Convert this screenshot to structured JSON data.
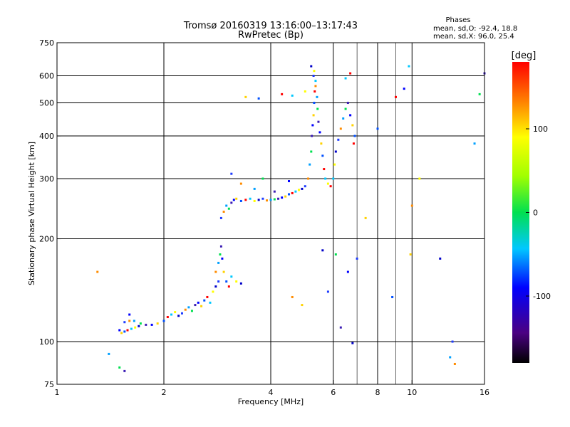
{
  "chart_data": {
    "type": "scatter",
    "title": "Tromsø 20160319 13:16:00–13:17:43",
    "subtitle": "RwPretec (Bp)",
    "xlabel": "Frequency [MHz]",
    "ylabel": "Stationary phase Virtual Height [km]",
    "x_scale": "log",
    "y_scale": "log",
    "xlim": [
      1,
      16
    ],
    "ylim": [
      75,
      750
    ],
    "x_ticks": [
      1,
      2,
      4,
      6,
      8,
      10,
      16
    ],
    "x_tick_labels": [
      "1",
      "2",
      "4",
      "6",
      "8",
      "10",
      "16"
    ],
    "x_grid": [
      2,
      4,
      6,
      8,
      10
    ],
    "x_minor": [
      7,
      9
    ],
    "y_ticks": [
      75,
      100,
      200,
      300,
      400,
      500,
      600,
      750
    ],
    "y_tick_labels": [
      "75",
      "100",
      "200",
      "300",
      "400",
      "500",
      "600",
      "750"
    ],
    "y_grid": [
      100,
      200,
      300,
      400,
      500,
      600
    ],
    "grid": true,
    "phases": {
      "heading": "Phases",
      "line_o": "mean, sd,O: -92.4, 18.8",
      "line_x": "mean, sd,X: 96.0, 25.4"
    },
    "colorbar": {
      "label": "[deg]",
      "range": [
        -180,
        180
      ],
      "ticks": [
        100,
        0,
        -100
      ],
      "tick_labels": [
        "100",
        "0",
        "-100"
      ]
    },
    "series": [
      {
        "points": [
          [
            1.5,
            108
          ],
          [
            1.52,
            106
          ],
          [
            1.55,
            107
          ],
          [
            1.58,
            108
          ],
          [
            1.62,
            109
          ],
          [
            1.66,
            110
          ],
          [
            1.7,
            111
          ],
          [
            1.55,
            114
          ],
          [
            1.6,
            115
          ],
          [
            1.65,
            115
          ],
          [
            1.72,
            113
          ],
          [
            1.78,
            112
          ],
          [
            1.85,
            112
          ],
          [
            1.92,
            113
          ],
          [
            2.0,
            115
          ],
          [
            2.05,
            118
          ],
          [
            2.1,
            120
          ],
          [
            2.15,
            122
          ],
          [
            2.2,
            119
          ],
          [
            2.25,
            121
          ],
          [
            2.3,
            124
          ],
          [
            2.35,
            126
          ],
          [
            2.4,
            123
          ],
          [
            2.45,
            128
          ],
          [
            2.5,
            130
          ],
          [
            2.55,
            127
          ],
          [
            2.6,
            132
          ],
          [
            2.65,
            135
          ],
          [
            2.7,
            130
          ],
          [
            2.75,
            140
          ],
          [
            2.8,
            145
          ],
          [
            2.85,
            150
          ],
          [
            2.8,
            160
          ],
          [
            2.85,
            170
          ],
          [
            2.88,
            180
          ],
          [
            2.9,
            190
          ],
          [
            2.92,
            175
          ],
          [
            2.95,
            160
          ],
          [
            3.0,
            150
          ],
          [
            3.05,
            145
          ],
          [
            3.1,
            155
          ],
          [
            3.2,
            150
          ],
          [
            3.3,
            148
          ],
          [
            2.9,
            230
          ],
          [
            2.95,
            240
          ],
          [
            3.0,
            250
          ],
          [
            3.05,
            245
          ],
          [
            3.1,
            255
          ],
          [
            3.15,
            260
          ],
          [
            3.2,
            262
          ],
          [
            3.3,
            258
          ],
          [
            3.4,
            260
          ],
          [
            3.5,
            262
          ],
          [
            3.6,
            258
          ],
          [
            3.7,
            260
          ],
          [
            3.8,
            262
          ],
          [
            3.9,
            259
          ],
          [
            4.0,
            260
          ],
          [
            4.1,
            261
          ],
          [
            4.2,
            262
          ],
          [
            4.3,
            264
          ],
          [
            4.4,
            266
          ],
          [
            4.5,
            270
          ],
          [
            4.6,
            272
          ],
          [
            4.7,
            275
          ],
          [
            4.8,
            278
          ],
          [
            4.9,
            280
          ],
          [
            5.0,
            285
          ],
          [
            5.1,
            300
          ],
          [
            5.15,
            330
          ],
          [
            5.2,
            360
          ],
          [
            5.22,
            400
          ],
          [
            5.25,
            430
          ],
          [
            5.28,
            460
          ],
          [
            5.3,
            500
          ],
          [
            5.32,
            540
          ],
          [
            5.35,
            580
          ],
          [
            5.3,
            620
          ],
          [
            5.2,
            640
          ],
          [
            5.28,
            600
          ],
          [
            5.35,
            560
          ],
          [
            5.4,
            520
          ],
          [
            5.42,
            480
          ],
          [
            5.45,
            440
          ],
          [
            5.5,
            410
          ],
          [
            5.55,
            380
          ],
          [
            5.6,
            350
          ],
          [
            5.65,
            320
          ],
          [
            5.7,
            300
          ],
          [
            5.8,
            290
          ],
          [
            5.9,
            285
          ],
          [
            6.0,
            300
          ],
          [
            6.05,
            330
          ],
          [
            6.1,
            360
          ],
          [
            6.2,
            390
          ],
          [
            6.3,
            420
          ],
          [
            6.4,
            450
          ],
          [
            6.5,
            480
          ],
          [
            6.6,
            500
          ],
          [
            6.7,
            460
          ],
          [
            6.8,
            430
          ],
          [
            6.9,
            400
          ],
          [
            6.85,
            380
          ],
          [
            3.1,
            310
          ],
          [
            3.3,
            290
          ],
          [
            3.6,
            280
          ],
          [
            3.8,
            300
          ],
          [
            4.1,
            275
          ],
          [
            4.5,
            295
          ],
          [
            3.4,
            520
          ],
          [
            3.7,
            515
          ],
          [
            4.3,
            530
          ],
          [
            4.6,
            525
          ],
          [
            5.0,
            540
          ],
          [
            6.7,
            610
          ],
          [
            6.5,
            590
          ],
          [
            1.3,
            160
          ],
          [
            1.4,
            92
          ],
          [
            1.5,
            84
          ],
          [
            1.55,
            82
          ],
          [
            1.6,
            120
          ],
          [
            6.1,
            180
          ],
          [
            6.3,
            110
          ],
          [
            6.6,
            160
          ],
          [
            7.4,
            230
          ],
          [
            8.0,
            420
          ],
          [
            9.0,
            520
          ],
          [
            9.8,
            640
          ],
          [
            10.5,
            300
          ],
          [
            12.0,
            175
          ],
          [
            13.0,
            100
          ],
          [
            13.2,
            86
          ],
          [
            15.0,
            380
          ],
          [
            15.5,
            530
          ],
          [
            16.0,
            610
          ],
          [
            9.5,
            550
          ],
          [
            9.9,
            180
          ],
          [
            8.8,
            135
          ],
          [
            5.6,
            185
          ],
          [
            5.8,
            140
          ],
          [
            4.6,
            135
          ],
          [
            6.8,
            99
          ],
          [
            7.0,
            175
          ],
          [
            10.0,
            250
          ],
          [
            12.8,
            90
          ],
          [
            4.9,
            128
          ]
        ]
      }
    ]
  }
}
